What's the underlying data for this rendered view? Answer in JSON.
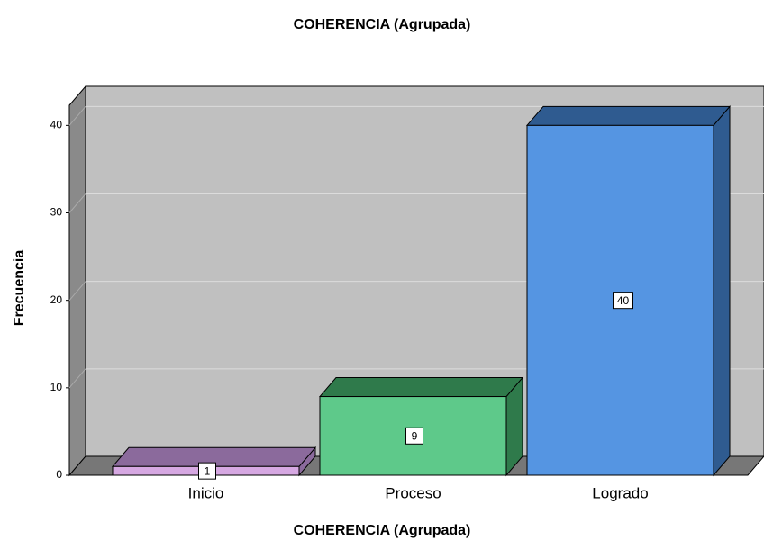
{
  "chart_data": {
    "type": "bar3d",
    "title": "COHERENCIA (Agrupada)",
    "x_label": "COHERENCIA (Agrupada)",
    "y_label": "Frecuencia",
    "categories": [
      "Inicio",
      "Proceso",
      "Logrado"
    ],
    "values": [
      1,
      9,
      40
    ],
    "colors": [
      "#d6a8e2",
      "#5ec98a",
      "#5595e2"
    ],
    "side_colors": [
      "#8b6a9c",
      "#2f7a4b",
      "#2f5b90"
    ],
    "ylim": [
      0,
      42.3
    ],
    "yticks": [
      0,
      10,
      20,
      30,
      40
    ],
    "grid": true
  }
}
